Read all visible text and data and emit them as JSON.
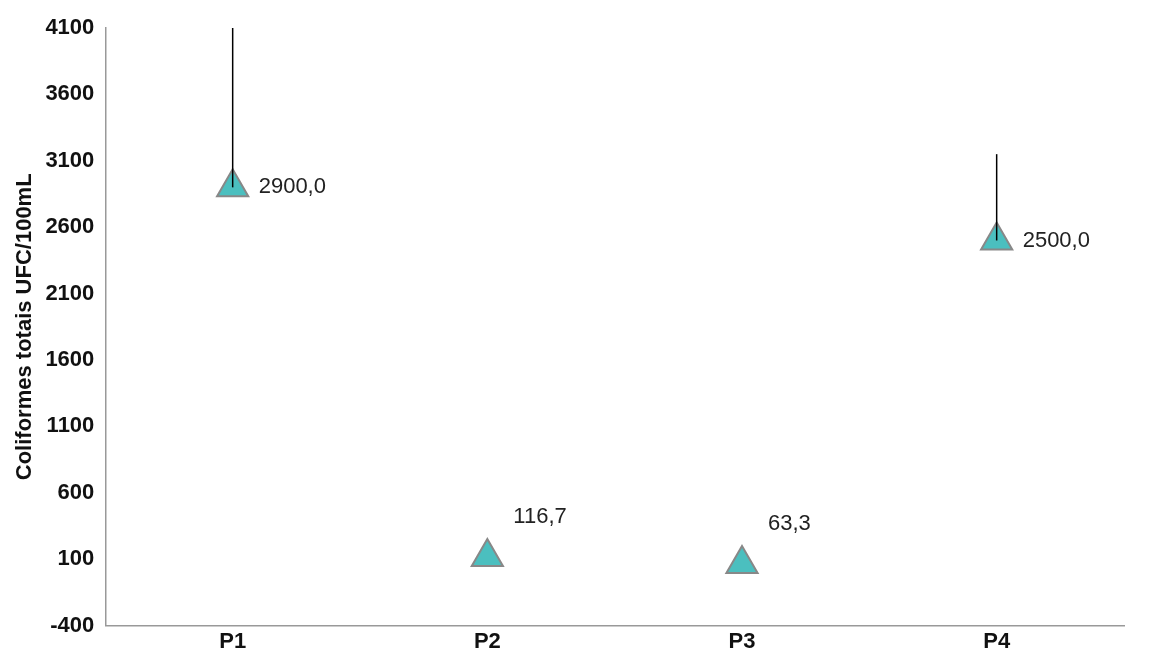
{
  "chart_data": {
    "type": "scatter",
    "ylabel": "Coliformes totais UFC/100mL",
    "categories": [
      "P1",
      "P2",
      "P3",
      "P4"
    ],
    "values": [
      2900,
      116.7,
      63.3,
      2500
    ],
    "value_labels": [
      "2900,0",
      "116,7",
      "63,3",
      "2500,0"
    ],
    "errors": [
      [
        2900,
        4100
      ],
      null,
      null,
      [
        2500,
        3150
      ]
    ],
    "color": "#4bbfbf",
    "marker": "triangle",
    "grid": false,
    "legend": false,
    "ylim": [
      -400,
      4100
    ],
    "yticks": [
      -400,
      100,
      600,
      1100,
      1600,
      2100,
      2600,
      3100,
      3600,
      4100
    ]
  }
}
